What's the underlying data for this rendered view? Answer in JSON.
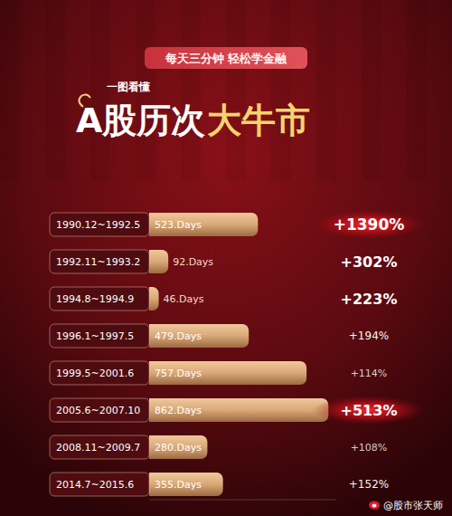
{
  "chart_data": {
    "type": "bar",
    "orientation": "horizontal",
    "subtitle": "每天三分钟 轻松学金融",
    "kicker": "一图看懂",
    "title": "A股历次",
    "title_accent": "大牛市",
    "categories": [
      "1990.12~1992.5",
      "1992.11~1993.2",
      "1994.8~1994.9",
      "1996.1~1997.5",
      "1999.5~2001.6",
      "2005.6~2007.10",
      "2008.11~2009.7",
      "2014.7~2015.6"
    ],
    "values": [
      523,
      92,
      46,
      479,
      757,
      862,
      280,
      355
    ],
    "value_labels": [
      "523.Days",
      "92.Days",
      "46.Days",
      "479.Days",
      "757.Days",
      "862.Days",
      "280.Days",
      "355.Days"
    ],
    "gains": [
      1390,
      302,
      223,
      194,
      114,
      513,
      108,
      152
    ],
    "gain_labels": [
      "+1390%",
      "+302%",
      "+223%",
      "+194%",
      "+114%",
      "+513%",
      "+108%",
      "+152%"
    ],
    "xlim": [
      0,
      900
    ],
    "data_labels": true,
    "tick_labels": false,
    "grid": false,
    "color": "#d9a877",
    "source": "@股市张天师"
  }
}
